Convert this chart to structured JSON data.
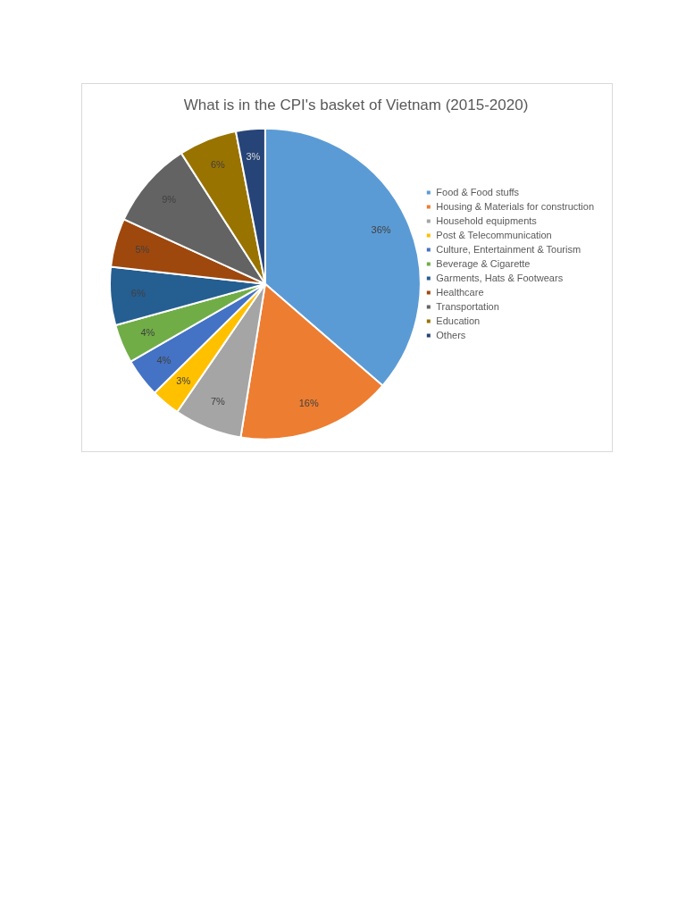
{
  "chart_data": {
    "type": "pie",
    "title": "What is in the CPI's basket of Vietnam (2015-2020)",
    "categories": [
      "Food & Food stuffs",
      "Housing & Materials for construction",
      "Household equipments",
      "Post & Telecommunication",
      "Culture, Entertainment & Tourism",
      "Beverage & Cigarette",
      "Garments, Hats & Footwears",
      "Healthcare",
      "Transportation",
      "Education",
      "Others"
    ],
    "values": [
      36,
      16,
      7,
      3,
      4,
      4,
      6,
      5,
      9,
      6,
      3
    ],
    "colors": [
      "#5b9bd5",
      "#ed7d31",
      "#a5a5a5",
      "#ffc000",
      "#4472c4",
      "#70ad47",
      "#255e91",
      "#9e480e",
      "#636363",
      "#997300",
      "#264478"
    ],
    "value_labels": [
      "36%",
      "16%",
      "7%",
      "3%",
      "4%",
      "4%",
      "6%",
      "5%",
      "9%",
      "6%",
      "3%"
    ],
    "legend": "right"
  }
}
